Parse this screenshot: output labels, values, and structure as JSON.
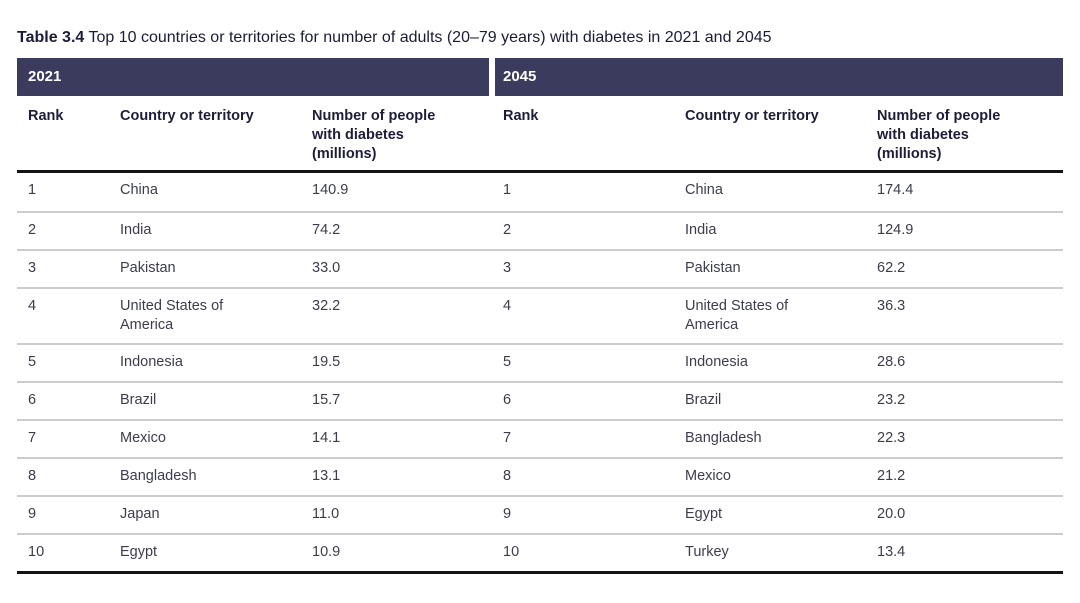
{
  "caption": {
    "label": "Table 3.4",
    "text": "Top 10 countries or territories for number of adults (20–79 years) with diabetes in 2021 and 2045"
  },
  "table": {
    "sections": [
      {
        "year": "2021"
      },
      {
        "year": "2045"
      }
    ],
    "col_headers": {
      "rank": "Rank",
      "country": "Country or territory",
      "number": "Number of people with diabetes (millions)"
    },
    "rows": [
      {
        "r1": "1",
        "c1": "China",
        "n1": "140.9",
        "r2": "1",
        "c2": "China",
        "n2": "174.4"
      },
      {
        "r1": "2",
        "c1": "India",
        "n1": "74.2",
        "r2": "2",
        "c2": "India",
        "n2": "124.9"
      },
      {
        "r1": "3",
        "c1": "Pakistan",
        "n1": "33.0",
        "r2": "3",
        "c2": "Pakistan",
        "n2": "62.2"
      },
      {
        "r1": "4",
        "c1": "United States of America",
        "n1": "32.2",
        "r2": "4",
        "c2": "United States of America",
        "n2": "36.3"
      },
      {
        "r1": "5",
        "c1": "Indonesia",
        "n1": "19.5",
        "r2": "5",
        "c2": "Indonesia",
        "n2": "28.6"
      },
      {
        "r1": "6",
        "c1": "Brazil",
        "n1": "15.7",
        "r2": "6",
        "c2": "Brazil",
        "n2": "23.2"
      },
      {
        "r1": "7",
        "c1": "Mexico",
        "n1": "14.1",
        "r2": "7",
        "c2": "Bangladesh",
        "n2": "22.3"
      },
      {
        "r1": "8",
        "c1": "Bangladesh",
        "n1": "13.1",
        "r2": "8",
        "c2": "Mexico",
        "n2": "21.2"
      },
      {
        "r1": "9",
        "c1": "Japan",
        "n1": "11.0",
        "r2": "9",
        "c2": "Egypt",
        "n2": "20.0"
      },
      {
        "r1": "10",
        "c1": "Egypt",
        "n1": "10.9",
        "r2": "10",
        "c2": "Turkey",
        "n2": "13.4"
      }
    ]
  },
  "colors": {
    "band": "#3b3b5d",
    "heavy_rule": "#141414",
    "light_rule": "#cccccc",
    "title_text": "#1b1b38",
    "header_text": "#1d1d3a",
    "body_text": "#3c3c4e"
  },
  "chart_data": {
    "type": "table",
    "title": "Table 3.4 Top 10 countries or territories for number of adults (20–79 years) with diabetes in 2021 and 2045",
    "sections": [
      {
        "year": "2021",
        "columns": [
          "Rank",
          "Country or territory",
          "Number of people with diabetes (millions)"
        ],
        "rows": [
          [
            1,
            "China",
            140.9
          ],
          [
            2,
            "India",
            74.2
          ],
          [
            3,
            "Pakistan",
            33.0
          ],
          [
            4,
            "United States of America",
            32.2
          ],
          [
            5,
            "Indonesia",
            19.5
          ],
          [
            6,
            "Brazil",
            15.7
          ],
          [
            7,
            "Mexico",
            14.1
          ],
          [
            8,
            "Bangladesh",
            13.1
          ],
          [
            9,
            "Japan",
            11.0
          ],
          [
            10,
            "Egypt",
            10.9
          ]
        ]
      },
      {
        "year": "2045",
        "columns": [
          "Rank",
          "Country or territory",
          "Number of people with diabetes (millions)"
        ],
        "rows": [
          [
            1,
            "China",
            174.4
          ],
          [
            2,
            "India",
            124.9
          ],
          [
            3,
            "Pakistan",
            62.2
          ],
          [
            4,
            "United States of America",
            36.3
          ],
          [
            5,
            "Indonesia",
            28.6
          ],
          [
            6,
            "Brazil",
            23.2
          ],
          [
            7,
            "Bangladesh",
            22.3
          ],
          [
            8,
            "Mexico",
            21.2
          ],
          [
            9,
            "Egypt",
            20.0
          ],
          [
            10,
            "Turkey",
            13.4
          ]
        ]
      }
    ]
  }
}
